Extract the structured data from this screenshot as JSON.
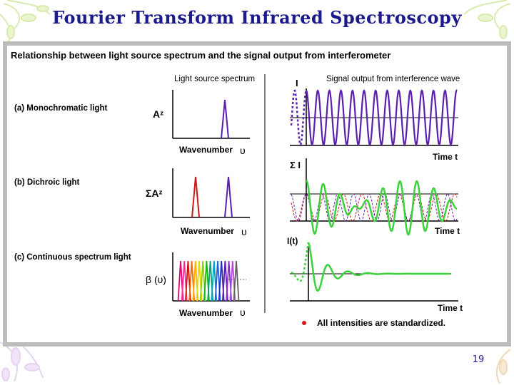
{
  "slide": {
    "title": "Fourier Transform Infrared Spectroscopy",
    "page_number": "19"
  },
  "figure": {
    "heading": "Relationship between light source spectrum and the signal output from interferometer",
    "left_header": "Light source spectrum",
    "right_header": "Signal output from interference wave",
    "rows": [
      {
        "label": "(a) Monochromatic light",
        "y_label": "Aᶻ",
        "x_label": "Wavenumber",
        "x_symbol": "υ",
        "right_y_label": "I",
        "right_x_label": "Time t"
      },
      {
        "label": "(b) Dichroic light",
        "y_label": "ΣAᶻ",
        "x_label": "Wavenumber",
        "x_symbol": "υ",
        "right_y_label": "Σ I",
        "right_x_label": "Time t"
      },
      {
        "label": "(c) Continuous spectrum light",
        "y_label": "β (υ)",
        "x_label": "Wavenumber",
        "x_symbol": "υ",
        "right_y_label": "I(t)",
        "right_x_label": "Time t"
      }
    ],
    "note": "All intensities are standardized.",
    "colors": {
      "title": "#1a1a8c",
      "purple_line": "#5b1fb0",
      "red_line": "#d01818",
      "green_line": "#3bd23b",
      "frame_gray": "#bdbdbd"
    }
  }
}
